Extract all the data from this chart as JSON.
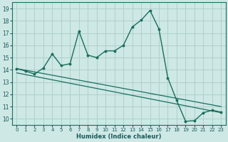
{
  "xlabel": "Humidex (Indice chaleur)",
  "bg_color": "#cde8e5",
  "line_color": "#1a6e5e",
  "grid_color": "#b0d0cc",
  "xlim": [
    -0.5,
    23.5
  ],
  "ylim": [
    9.5,
    19.5
  ],
  "xticks": [
    0,
    1,
    2,
    3,
    4,
    5,
    6,
    7,
    8,
    9,
    10,
    11,
    12,
    13,
    14,
    15,
    16,
    17,
    18,
    19,
    20,
    21,
    22,
    23
  ],
  "yticks": [
    10,
    11,
    12,
    13,
    14,
    15,
    16,
    17,
    18,
    19
  ],
  "line1_x": [
    0,
    1,
    2,
    3,
    4,
    5,
    6,
    7,
    8,
    9,
    10,
    11,
    12,
    13,
    14,
    15,
    16,
    17,
    18,
    19,
    20,
    21,
    22,
    23
  ],
  "line1_y": [
    14.1,
    13.9,
    13.65,
    14.15,
    15.3,
    14.35,
    14.5,
    17.15,
    15.2,
    15.0,
    15.55,
    15.55,
    16.0,
    17.5,
    18.05,
    18.85,
    17.35,
    13.35,
    11.5,
    9.8,
    9.85,
    10.5,
    10.7,
    10.55
  ],
  "line2_x": [
    0,
    23
  ],
  "line2_y": [
    14.1,
    11.0
  ],
  "line3_x": [
    0,
    23
  ],
  "line3_y": [
    13.75,
    10.5
  ]
}
